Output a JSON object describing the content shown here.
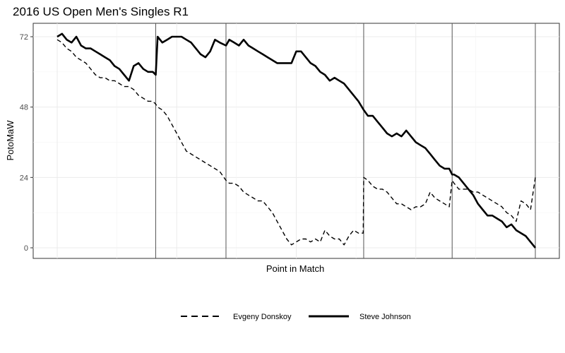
{
  "chart_data": {
    "type": "line",
    "title": "2016 US Open Men's Singles R1",
    "xlabel": "Point in Match",
    "ylabel": "PotoMaW",
    "xlim": [
      0,
      100
    ],
    "ylim": [
      -3,
      75
    ],
    "y_ticks": [
      0,
      24,
      48,
      72
    ],
    "grid": true,
    "set_boundaries": [
      20.6,
      35.3,
      64.1,
      82.6,
      100
    ],
    "legend_position": "bottom",
    "series": [
      {
        "name": "Evgeny Donskoy",
        "line_style": "dashed",
        "color": "#000000",
        "points": [
          [
            0,
            71
          ],
          [
            1,
            70
          ],
          [
            2,
            68
          ],
          [
            3,
            67
          ],
          [
            4,
            65
          ],
          [
            5,
            64
          ],
          [
            6,
            63
          ],
          [
            7,
            61
          ],
          [
            8,
            59
          ],
          [
            9,
            58
          ],
          [
            10,
            58
          ],
          [
            11,
            57
          ],
          [
            12,
            57
          ],
          [
            13,
            56
          ],
          [
            14,
            55
          ],
          [
            15,
            55
          ],
          [
            16,
            54
          ],
          [
            17,
            52
          ],
          [
            18,
            51
          ],
          [
            19,
            50
          ],
          [
            20,
            50
          ],
          [
            20.6,
            49
          ],
          [
            21,
            48
          ],
          [
            22,
            47
          ],
          [
            23,
            45
          ],
          [
            24,
            42
          ],
          [
            25,
            39
          ],
          [
            26,
            36
          ],
          [
            27,
            33
          ],
          [
            28,
            32
          ],
          [
            29,
            31
          ],
          [
            30,
            30
          ],
          [
            31,
            29
          ],
          [
            32,
            28
          ],
          [
            33,
            27
          ],
          [
            34,
            26
          ],
          [
            35.3,
            23
          ],
          [
            36,
            22
          ],
          [
            37,
            22
          ],
          [
            38,
            21
          ],
          [
            39,
            19
          ],
          [
            40,
            18
          ],
          [
            41,
            17
          ],
          [
            42,
            16
          ],
          [
            43,
            16
          ],
          [
            44,
            14
          ],
          [
            45,
            12
          ],
          [
            46,
            9
          ],
          [
            47,
            6
          ],
          [
            48,
            3
          ],
          [
            49,
            1
          ],
          [
            50,
            2
          ],
          [
            51,
            3
          ],
          [
            52,
            3
          ],
          [
            53,
            2
          ],
          [
            54,
            3
          ],
          [
            55,
            2
          ],
          [
            56,
            6
          ],
          [
            57,
            4
          ],
          [
            58,
            3
          ],
          [
            59,
            3
          ],
          [
            60,
            1
          ],
          [
            61,
            4
          ],
          [
            62,
            6
          ],
          [
            63,
            5
          ],
          [
            64,
            5
          ],
          [
            64.1,
            24
          ],
          [
            65,
            23
          ],
          [
            66,
            21
          ],
          [
            67,
            20
          ],
          [
            68,
            20
          ],
          [
            69,
            19
          ],
          [
            70,
            17
          ],
          [
            71,
            15
          ],
          [
            72,
            15
          ],
          [
            73,
            14
          ],
          [
            74,
            13
          ],
          [
            75,
            14
          ],
          [
            76,
            14
          ],
          [
            77,
            15
          ],
          [
            78,
            19
          ],
          [
            79,
            17
          ],
          [
            80,
            16
          ],
          [
            81,
            15
          ],
          [
            82,
            14
          ],
          [
            82.6,
            23
          ],
          [
            83,
            22
          ],
          [
            84,
            20
          ],
          [
            85,
            20
          ],
          [
            86,
            20
          ],
          [
            87,
            19
          ],
          [
            88,
            19
          ],
          [
            89,
            18
          ],
          [
            90,
            17
          ],
          [
            91,
            16
          ],
          [
            92,
            15
          ],
          [
            93,
            14
          ],
          [
            94,
            12
          ],
          [
            95,
            11
          ],
          [
            96,
            9
          ],
          [
            97,
            16
          ],
          [
            98,
            15
          ],
          [
            99,
            13
          ],
          [
            100,
            24
          ]
        ]
      },
      {
        "name": "Steve Johnson",
        "line_style": "solid",
        "color": "#000000",
        "points": [
          [
            0,
            72
          ],
          [
            1,
            73
          ],
          [
            2,
            71
          ],
          [
            3,
            70
          ],
          [
            4,
            72
          ],
          [
            5,
            69
          ],
          [
            6,
            68
          ],
          [
            7,
            68
          ],
          [
            8,
            67
          ],
          [
            9,
            66
          ],
          [
            10,
            65
          ],
          [
            11,
            64
          ],
          [
            12,
            62
          ],
          [
            13,
            61
          ],
          [
            14,
            59
          ],
          [
            15,
            57
          ],
          [
            16,
            62
          ],
          [
            17,
            63
          ],
          [
            18,
            61
          ],
          [
            19,
            60
          ],
          [
            20,
            60
          ],
          [
            20.6,
            59
          ],
          [
            21,
            72
          ],
          [
            22,
            70
          ],
          [
            23,
            71
          ],
          [
            24,
            72
          ],
          [
            25,
            72
          ],
          [
            26,
            72
          ],
          [
            27,
            71
          ],
          [
            28,
            70
          ],
          [
            29,
            68
          ],
          [
            30,
            66
          ],
          [
            31,
            65
          ],
          [
            32,
            67
          ],
          [
            33,
            71
          ],
          [
            34,
            70
          ],
          [
            35.3,
            69
          ],
          [
            36,
            71
          ],
          [
            37,
            70
          ],
          [
            38,
            69
          ],
          [
            39,
            71
          ],
          [
            40,
            69
          ],
          [
            41,
            68
          ],
          [
            42,
            67
          ],
          [
            43,
            66
          ],
          [
            44,
            65
          ],
          [
            45,
            64
          ],
          [
            46,
            63
          ],
          [
            47,
            63
          ],
          [
            48,
            63
          ],
          [
            49,
            63
          ],
          [
            50,
            67
          ],
          [
            51,
            67
          ],
          [
            52,
            65
          ],
          [
            53,
            63
          ],
          [
            54,
            62
          ],
          [
            55,
            60
          ],
          [
            56,
            59
          ],
          [
            57,
            57
          ],
          [
            58,
            58
          ],
          [
            59,
            57
          ],
          [
            60,
            56
          ],
          [
            61,
            54
          ],
          [
            62,
            52
          ],
          [
            63,
            50
          ],
          [
            64.1,
            47
          ],
          [
            65,
            45
          ],
          [
            66,
            45
          ],
          [
            67,
            43
          ],
          [
            68,
            41
          ],
          [
            69,
            39
          ],
          [
            70,
            38
          ],
          [
            71,
            39
          ],
          [
            72,
            38
          ],
          [
            73,
            40
          ],
          [
            74,
            38
          ],
          [
            75,
            36
          ],
          [
            76,
            35
          ],
          [
            77,
            34
          ],
          [
            78,
            32
          ],
          [
            79,
            30
          ],
          [
            80,
            28
          ],
          [
            81,
            27
          ],
          [
            82,
            27
          ],
          [
            82.6,
            25
          ],
          [
            83,
            25
          ],
          [
            84,
            24
          ],
          [
            85,
            22
          ],
          [
            86,
            20
          ],
          [
            87,
            18
          ],
          [
            88,
            15
          ],
          [
            89,
            13
          ],
          [
            90,
            11
          ],
          [
            91,
            11
          ],
          [
            92,
            10
          ],
          [
            93,
            9
          ],
          [
            94,
            7
          ],
          [
            95,
            8
          ],
          [
            96,
            6
          ],
          [
            97,
            5
          ],
          [
            98,
            4
          ],
          [
            99,
            2
          ],
          [
            100,
            0
          ]
        ]
      }
    ]
  }
}
